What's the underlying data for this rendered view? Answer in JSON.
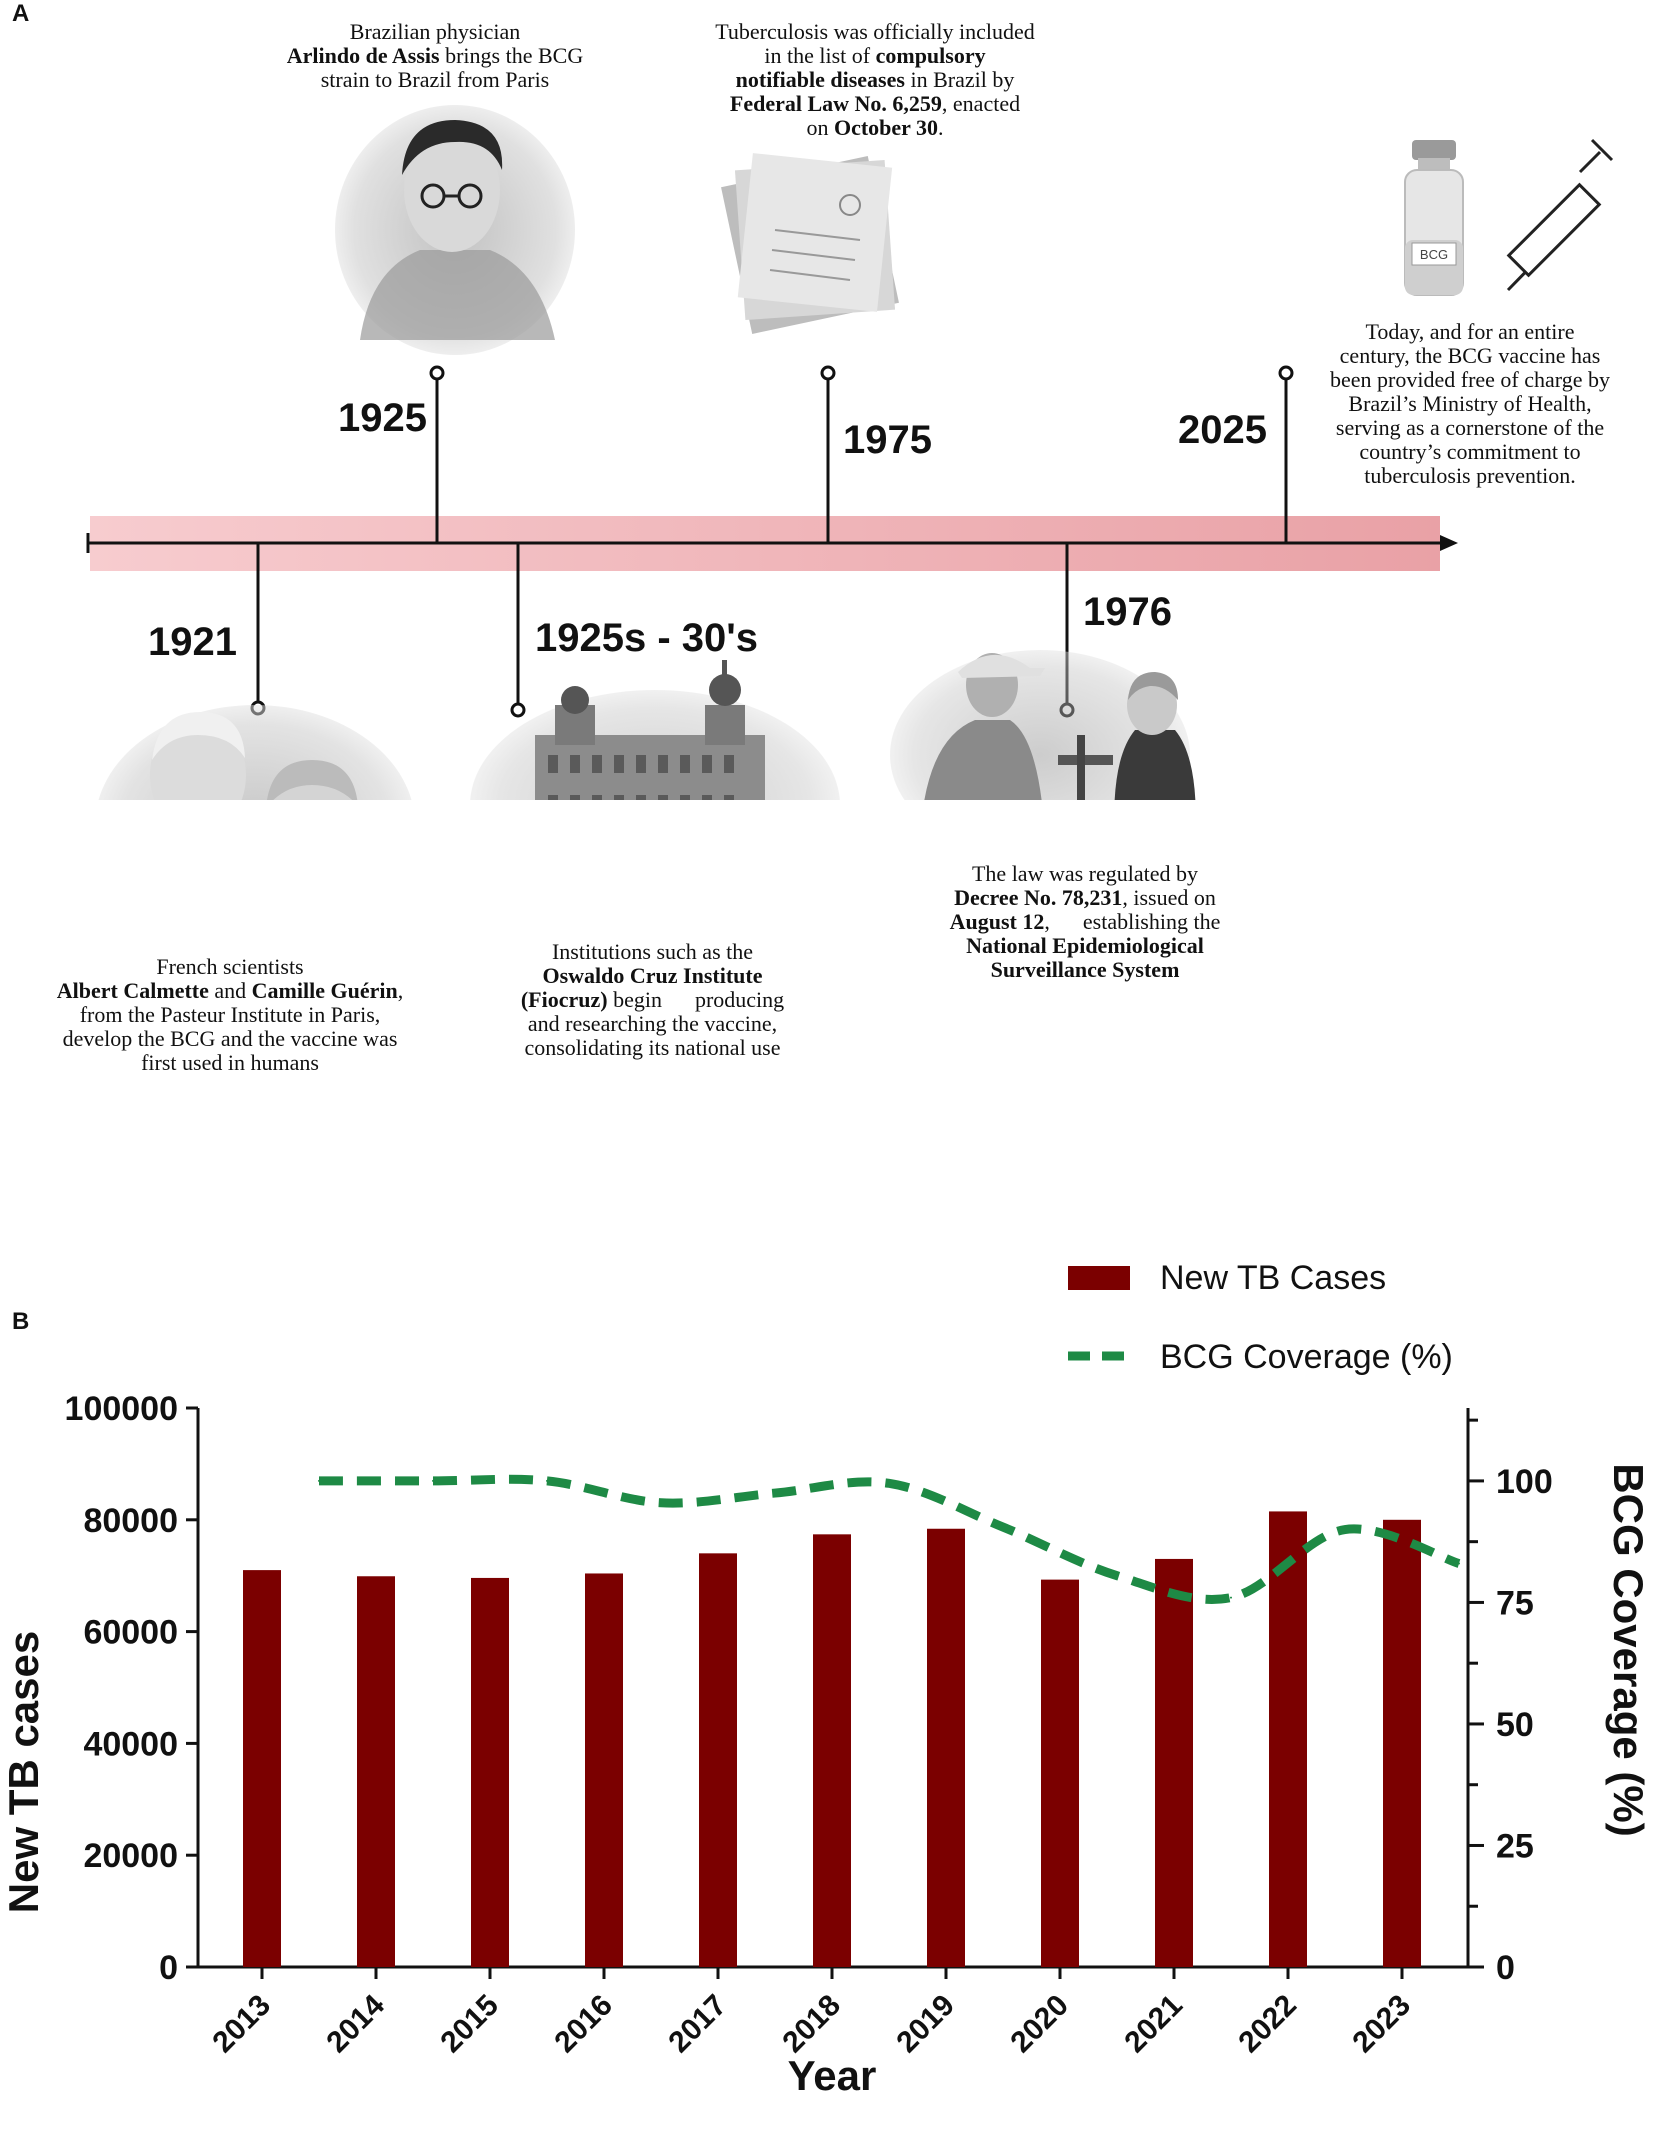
{
  "panels": {
    "a_label": "A",
    "b_label": "B"
  },
  "timeline": {
    "events": [
      {
        "year": "1925",
        "caption": {
          "line1": "Brazilian physician",
          "line2_bold": "Arlindo de Assis",
          "line2_rest": " brings the BCG",
          "line3": "strain to Brazil from Paris"
        }
      },
      {
        "year": "1975",
        "caption": {
          "l1": "Tuberculosis was officially included",
          "l2a": "in the list of ",
          "l2b": "compulsory",
          "l3a": "notifiable diseases",
          "l3b": " in Brazil by",
          "l4a": "Federal Law No. 6,259",
          "l4b": ", enacted",
          "l5a": "on ",
          "l5b": "October 30",
          "l5c": "."
        }
      },
      {
        "year": "2025",
        "caption": {
          "l1": "Today, and for an entire",
          "l2": "century, the BCG vaccine has",
          "l3": "been provided free of charge by",
          "l4": "Brazil’s Ministry of Health,",
          "l5": "serving as a cornerstone of the",
          "l6": "country’s commitment to",
          "l7": "tuberculosis prevention."
        }
      },
      {
        "year": "1921",
        "caption": {
          "l1": "French scientists",
          "l2a": "Albert Calmette",
          "l2b": " and ",
          "l2c": "Camille Guérin",
          "l2d": ",",
          "l3": "from the Pasteur Institute in Paris,",
          "l4": "develop the BCG and the vaccine was",
          "l5": "first used in humans"
        }
      },
      {
        "year": "1925s - 30's",
        "caption": {
          "l1": "Institutions such as the",
          "l2": "Oswaldo Cruz Institute",
          "l3a": "(Fiocruz)",
          "l3b": " begin      producing",
          "l4": "and researching the vaccine,",
          "l5": "consolidating its national use"
        }
      },
      {
        "year": "1976",
        "caption": {
          "l1": "The law was regulated by",
          "l2a": "Decree No. 78,231",
          "l2b": ", issued on",
          "l3a": "August 12",
          "l3b": ",      establishing the",
          "l4": "National Epidemiological",
          "l5": "Surveillance System"
        }
      }
    ],
    "vial_label": "BCG"
  },
  "chart_data": {
    "type": "bar",
    "categories": [
      "2013",
      "2014",
      "2015",
      "2016",
      "2017",
      "2018",
      "2019",
      "2020",
      "2021",
      "2022",
      "2023"
    ],
    "series": [
      {
        "name": "New TB Cases",
        "type": "bar",
        "axis": "left",
        "color": "#7b0000",
        "values": [
          71000,
          69900,
          69600,
          70400,
          74000,
          77400,
          78400,
          69300,
          73000,
          81500,
          80000
        ]
      },
      {
        "name": "BCG Coverage (%)",
        "type": "line",
        "style": "dashed",
        "axis": "right",
        "color": "#1e8a45",
        "values": [
          100,
          100,
          100,
          95.5,
          97.5,
          99.5,
          90.5,
          80.5,
          76,
          90,
          83
        ]
      }
    ],
    "xlabel": "Year",
    "ylabel": "New TB cases",
    "y2label": "BCG Coverage (%)",
    "ylim": [
      0,
      100000
    ],
    "y2lim": [
      0,
      100
    ],
    "yticks": [
      "0",
      "20000",
      "40000",
      "60000",
      "80000",
      "100000"
    ],
    "y2ticks": [
      "0",
      "25",
      "50",
      "75",
      "100"
    ],
    "legend_position": "top-right",
    "grid": false
  }
}
